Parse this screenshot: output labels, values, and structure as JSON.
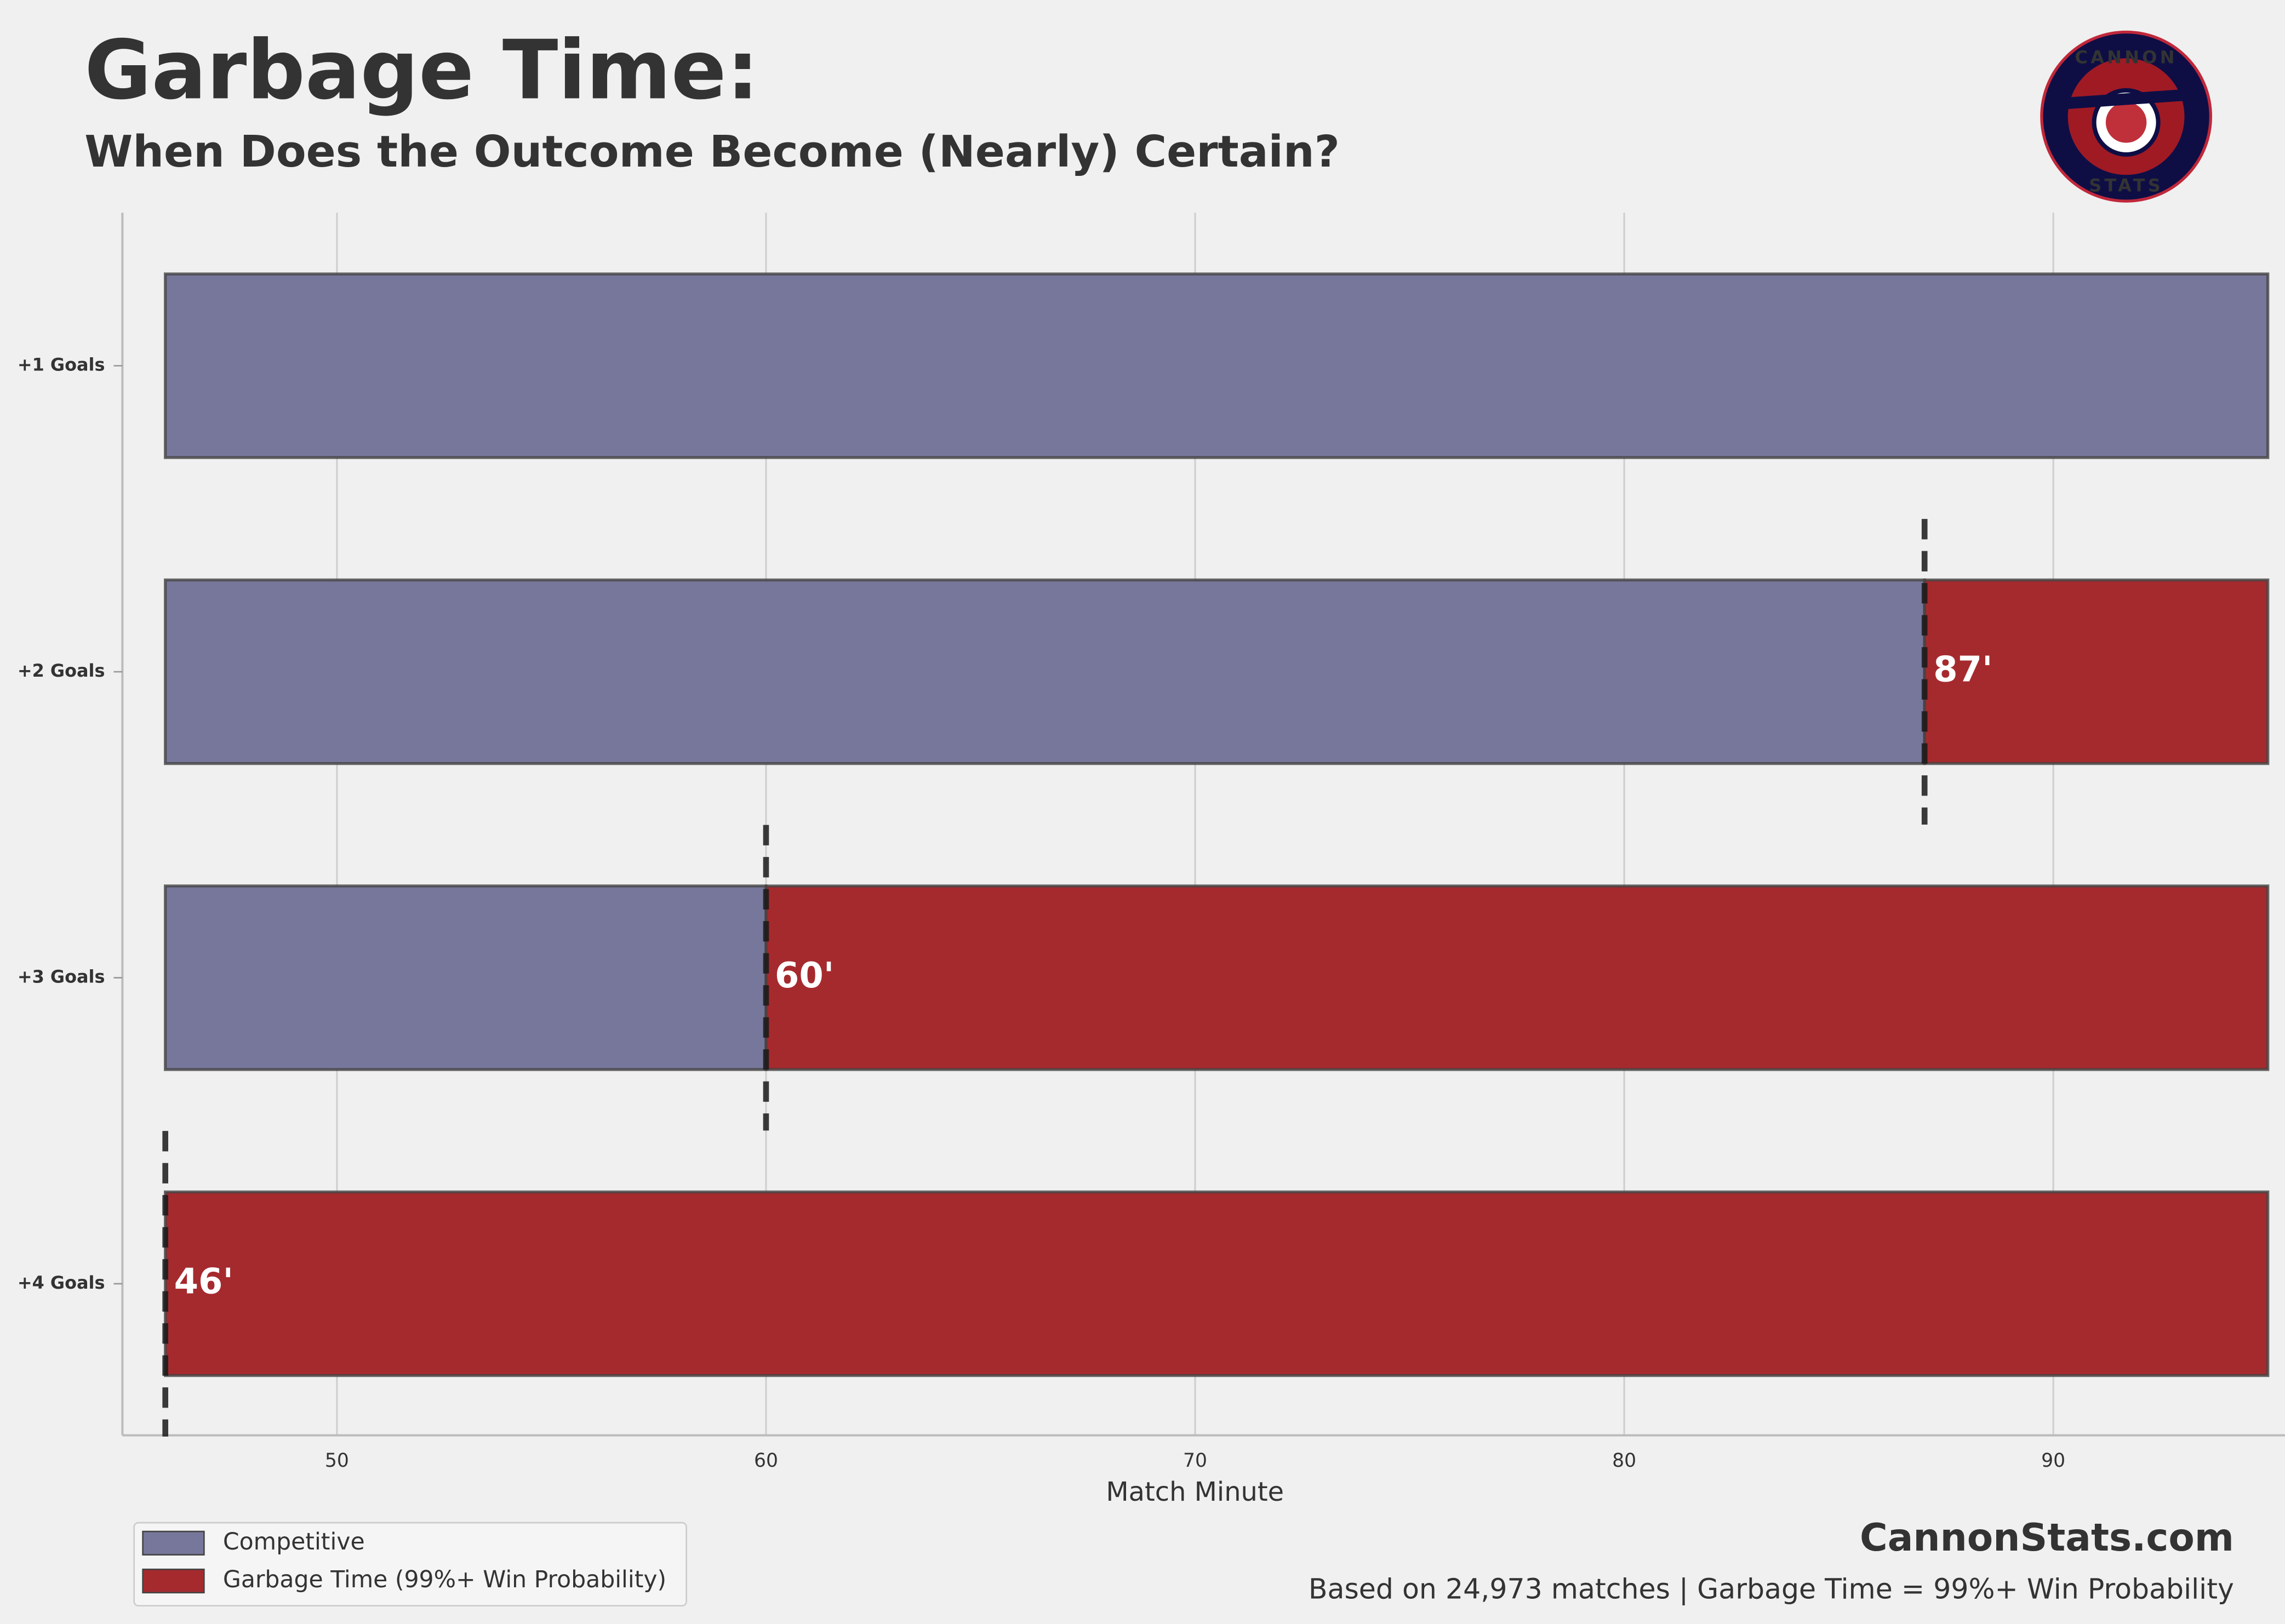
{
  "chart_data": {
    "type": "floating-bar",
    "orientation": "horizontal",
    "title": "Garbage Time:",
    "subtitle": "When Does the Outcome Become (Nearly) Certain?",
    "xlabel": "Match Minute",
    "categories": [
      "+1 Goals",
      "+2 Goals",
      "+3 Goals",
      "+4 Goals"
    ],
    "series": [
      {
        "name": "Competitive",
        "color": "#77779b",
        "values": [
          [
            46,
            95
          ],
          [
            46,
            87
          ],
          [
            46,
            60
          ],
          null
        ]
      },
      {
        "name": "Garbage Time (99%+ Win Probability)",
        "color": "#a52a2e",
        "values": [
          null,
          [
            87,
            95
          ],
          [
            60,
            95
          ],
          [
            46,
            95
          ]
        ],
        "value_labels": [
          null,
          "87'",
          "60'",
          "46'"
        ]
      }
    ],
    "xlim": [
      45,
      95.4
    ],
    "xticks": [
      50,
      60,
      70,
      80,
      90
    ],
    "grid": true,
    "legend": "lower left",
    "brand": "CannonStats.com",
    "footnote": "Based on 24,973 matches | Garbage Time = 99%+ Win Probability",
    "logo": {
      "top": "CANNON",
      "bottom": "STATS"
    }
  }
}
